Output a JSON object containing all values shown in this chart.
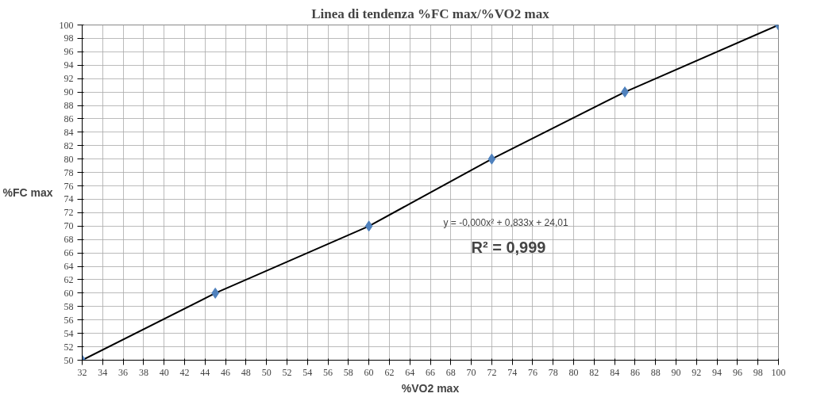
{
  "chart_data": {
    "type": "scatter",
    "title": "Linea di tendenza %FC max/%VO2 max",
    "xlabel": "%VO2 max",
    "ylabel": "%FC max",
    "xlim": [
      32,
      100
    ],
    "xticks": [
      32,
      34,
      36,
      38,
      40,
      42,
      44,
      46,
      48,
      50,
      52,
      54,
      56,
      58,
      60,
      62,
      64,
      66,
      68,
      70,
      72,
      74,
      76,
      78,
      80,
      82,
      84,
      86,
      88,
      90,
      92,
      94,
      96,
      98,
      100
    ],
    "ylim": [
      50,
      100
    ],
    "yticks": [
      50,
      52,
      54,
      56,
      58,
      60,
      62,
      64,
      66,
      68,
      70,
      72,
      74,
      76,
      78,
      80,
      82,
      84,
      86,
      88,
      90,
      92,
      94,
      96,
      98,
      100
    ],
    "grid": true,
    "series": [
      {
        "type": "line",
        "color": "#000000",
        "x": [
          32,
          45,
          60,
          72,
          85,
          100
        ],
        "values": [
          50,
          60,
          70,
          80,
          90,
          100
        ],
        "marker": "none",
        "line_style": "solid"
      },
      {
        "color": "#4f81bd",
        "x": [
          32,
          45,
          60,
          72,
          85,
          100
        ],
        "values": [
          50,
          60,
          70,
          80,
          90,
          100
        ],
        "marker": "diamond"
      }
    ],
    "annotations": [
      "y = -0,000x² + 0,833x + 24,01",
      "R² = 0,999"
    ]
  }
}
